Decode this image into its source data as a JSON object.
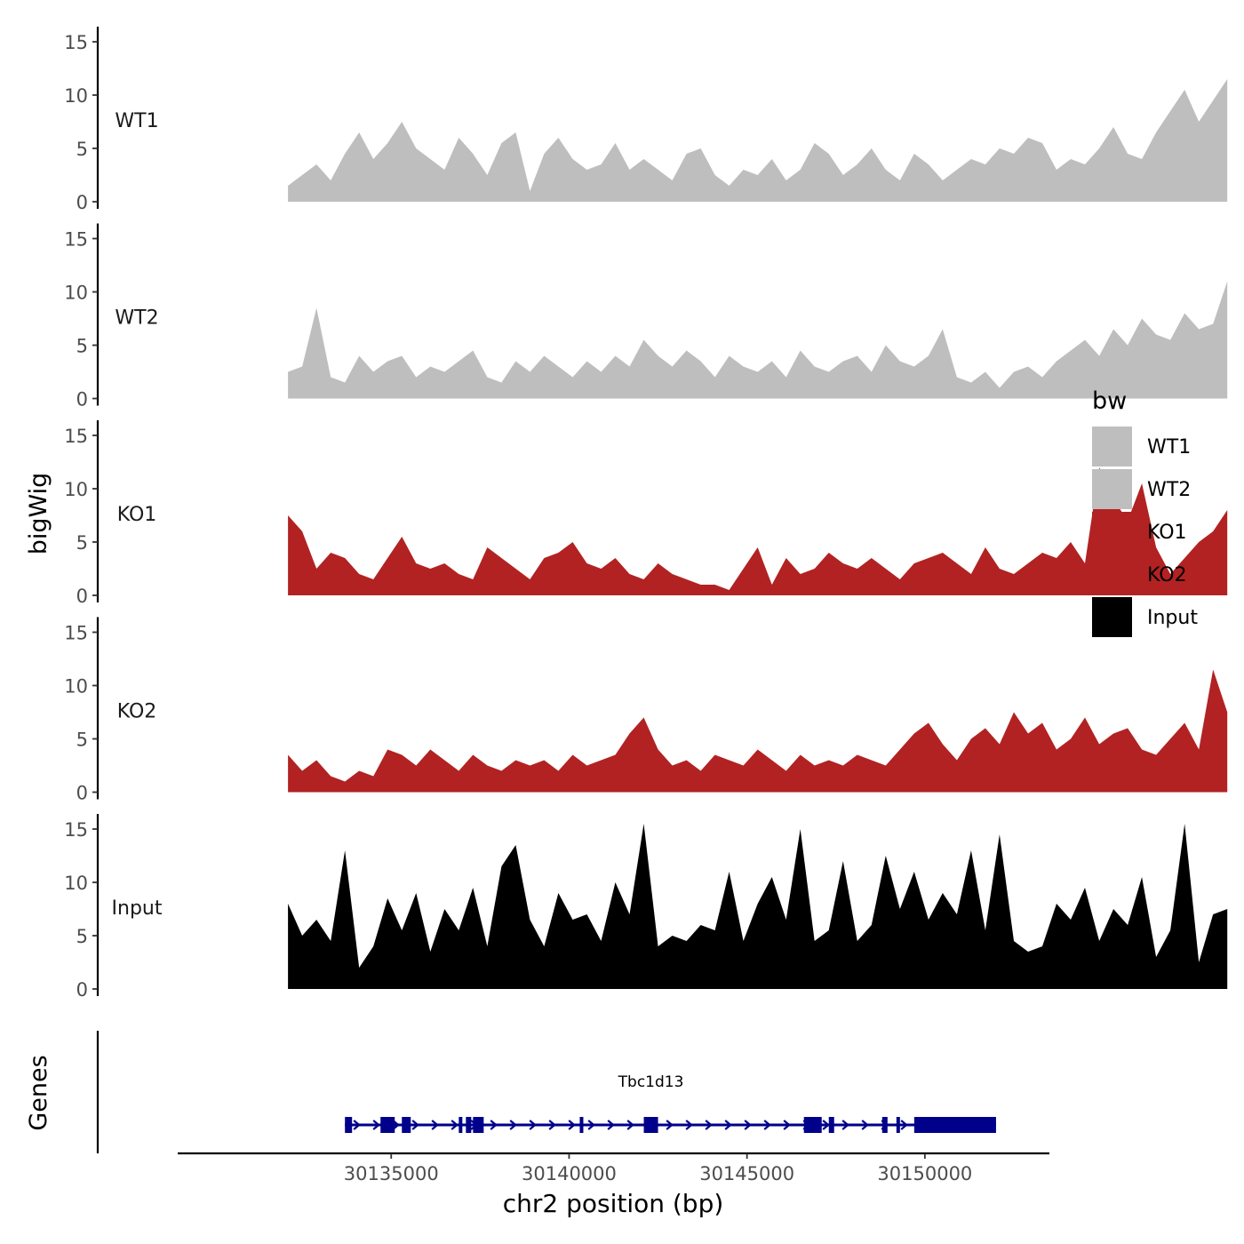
{
  "chart_data": {
    "type": "area",
    "ylabel": "bigWig",
    "xlabel": "chr2 position (bp)",
    "genes_label": "Genes",
    "xlim": [
      30129000,
      30153500
    ],
    "x_ticks": [
      30135000,
      30140000,
      30145000,
      30150000
    ],
    "x_tick_labels": [
      "30135000",
      "30140000",
      "30145000",
      "30150000"
    ],
    "ylim": [
      0,
      16
    ],
    "y_ticks": [
      0,
      5,
      10,
      15
    ],
    "y_tick_labels": [
      "0",
      "5",
      "10",
      "15"
    ],
    "x_start": 30132100,
    "x_step": 400,
    "legend": {
      "title": "bw",
      "position": "right",
      "entries": [
        {
          "label": "WT1",
          "color": "#bebebe"
        },
        {
          "label": "WT2",
          "color": "#bebebe"
        },
        {
          "label": "KO1",
          "color": "#b22222"
        },
        {
          "label": "KO2",
          "color": "#b22222"
        },
        {
          "label": "Input",
          "color": "#000000"
        }
      ]
    },
    "series": [
      {
        "name": "WT1",
        "color": "#bebebe",
        "values": [
          1.5,
          2.5,
          3.5,
          2.0,
          4.5,
          6.5,
          4.0,
          5.5,
          7.5,
          5.0,
          4.0,
          3.0,
          6.0,
          4.5,
          2.5,
          5.5,
          6.5,
          1.0,
          4.5,
          6.0,
          4.0,
          3.0,
          3.5,
          5.5,
          3.0,
          4.0,
          3.0,
          2.0,
          4.5,
          5.0,
          2.5,
          1.5,
          3.0,
          2.5,
          4.0,
          2.0,
          3.0,
          5.5,
          4.5,
          2.5,
          3.5,
          5.0,
          3.0,
          2.0,
          4.5,
          3.5,
          2.0,
          3.0,
          4.0,
          3.5,
          5.0,
          4.5,
          6.0,
          5.5,
          3.0,
          4.0,
          3.5,
          5.0,
          7.0,
          4.5,
          4.0,
          6.5,
          8.5,
          10.5,
          7.5,
          9.5,
          11.5
        ]
      },
      {
        "name": "WT2",
        "color": "#bebebe",
        "values": [
          2.5,
          3.0,
          8.5,
          2.0,
          1.5,
          4.0,
          2.5,
          3.5,
          4.0,
          2.0,
          3.0,
          2.5,
          3.5,
          4.5,
          2.0,
          1.5,
          3.5,
          2.5,
          4.0,
          3.0,
          2.0,
          3.5,
          2.5,
          4.0,
          3.0,
          5.5,
          4.0,
          3.0,
          4.5,
          3.5,
          2.0,
          4.0,
          3.0,
          2.5,
          3.5,
          2.0,
          4.5,
          3.0,
          2.5,
          3.5,
          4.0,
          2.5,
          5.0,
          3.5,
          3.0,
          4.0,
          6.5,
          2.0,
          1.5,
          2.5,
          1.0,
          2.5,
          3.0,
          2.0,
          3.5,
          4.5,
          5.5,
          4.0,
          6.5,
          5.0,
          7.5,
          6.0,
          5.5,
          8.0,
          6.5,
          7.0,
          11.0
        ]
      },
      {
        "name": "KO1",
        "color": "#b22222",
        "values": [
          7.5,
          6.0,
          2.5,
          4.0,
          3.5,
          2.0,
          1.5,
          3.5,
          5.5,
          3.0,
          2.5,
          3.0,
          2.0,
          1.5,
          4.5,
          3.5,
          2.5,
          1.5,
          3.5,
          4.0,
          5.0,
          3.0,
          2.5,
          3.5,
          2.0,
          1.5,
          3.0,
          2.0,
          1.5,
          1.0,
          1.0,
          0.5,
          2.5,
          4.5,
          1.0,
          3.5,
          2.0,
          2.5,
          4.0,
          3.0,
          2.5,
          3.5,
          2.5,
          1.5,
          3.0,
          3.5,
          4.0,
          3.0,
          2.0,
          4.5,
          2.5,
          2.0,
          3.0,
          4.0,
          3.5,
          5.0,
          3.0,
          12.0,
          9.0,
          7.0,
          10.5,
          4.5,
          2.0,
          3.5,
          5.0,
          6.0,
          8.0
        ]
      },
      {
        "name": "KO2",
        "color": "#b22222",
        "values": [
          3.5,
          2.0,
          3.0,
          1.5,
          1.0,
          2.0,
          1.5,
          4.0,
          3.5,
          2.5,
          4.0,
          3.0,
          2.0,
          3.5,
          2.5,
          2.0,
          3.0,
          2.5,
          3.0,
          2.0,
          3.5,
          2.5,
          3.0,
          3.5,
          5.5,
          7.0,
          4.0,
          2.5,
          3.0,
          2.0,
          3.5,
          3.0,
          2.5,
          4.0,
          3.0,
          2.0,
          3.5,
          2.5,
          3.0,
          2.5,
          3.5,
          3.0,
          2.5,
          4.0,
          5.5,
          6.5,
          4.5,
          3.0,
          5.0,
          6.0,
          4.5,
          7.5,
          5.5,
          6.5,
          4.0,
          5.0,
          7.0,
          4.5,
          5.5,
          6.0,
          4.0,
          3.5,
          5.0,
          6.5,
          4.0,
          11.5,
          7.5
        ]
      },
      {
        "name": "Input",
        "color": "#000000",
        "values": [
          8.0,
          5.0,
          6.5,
          4.5,
          13.0,
          2.0,
          4.0,
          8.5,
          5.5,
          9.0,
          3.5,
          7.5,
          5.5,
          9.5,
          4.0,
          11.5,
          13.5,
          6.5,
          4.0,
          9.0,
          6.5,
          7.0,
          4.5,
          10.0,
          7.0,
          15.5,
          4.0,
          5.0,
          4.5,
          6.0,
          5.5,
          11.0,
          4.5,
          8.0,
          10.5,
          6.5,
          15.0,
          4.5,
          5.5,
          12.0,
          4.5,
          6.0,
          12.5,
          7.5,
          11.0,
          6.5,
          9.0,
          7.0,
          13.0,
          5.5,
          14.5,
          4.5,
          3.5,
          4.0,
          8.0,
          6.5,
          9.5,
          4.5,
          7.5,
          6.0,
          10.5,
          3.0,
          5.5,
          15.5,
          2.5,
          7.0,
          7.5
        ]
      }
    ],
    "gene": {
      "name": "Tbc1d13",
      "color": "#00008b",
      "strand": "+",
      "start": 30133700,
      "end": 30152000,
      "exons": [
        [
          30133700,
          30133900
        ],
        [
          30134700,
          30135100
        ],
        [
          30135300,
          30135550
        ],
        [
          30136900,
          30137000
        ],
        [
          30137100,
          30137250
        ],
        [
          30137300,
          30137600
        ],
        [
          30140300,
          30140400
        ],
        [
          30142100,
          30142500
        ],
        [
          30146600,
          30147100
        ],
        [
          30147300,
          30147450
        ],
        [
          30148800,
          30148950
        ],
        [
          30149200,
          30149300
        ],
        [
          30149700,
          30152000
        ]
      ]
    }
  }
}
